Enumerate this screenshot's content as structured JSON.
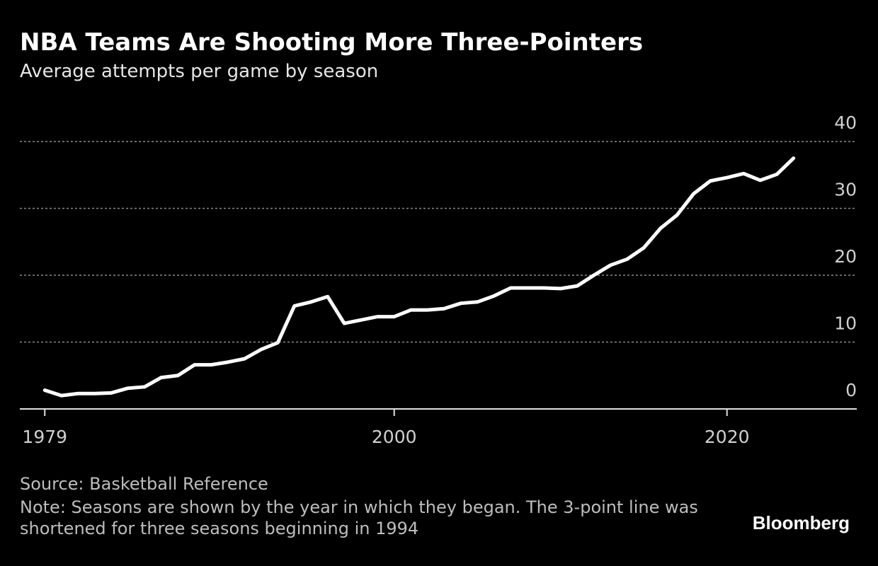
{
  "chart_data": {
    "type": "line",
    "title": "NBA Teams Are Shooting More Three-Pointers",
    "subtitle": "Average attempts per game by season",
    "x": [
      1979,
      1980,
      1981,
      1982,
      1983,
      1984,
      1985,
      1986,
      1987,
      1988,
      1989,
      1990,
      1991,
      1992,
      1993,
      1994,
      1995,
      1996,
      1997,
      1998,
      1999,
      2000,
      2001,
      2002,
      2003,
      2004,
      2005,
      2006,
      2007,
      2008,
      2009,
      2010,
      2011,
      2012,
      2013,
      2014,
      2015,
      2016,
      2017,
      2018,
      2019,
      2020,
      2021,
      2022,
      2023,
      2024
    ],
    "values": [
      2.8,
      2.0,
      2.3,
      2.3,
      2.4,
      3.1,
      3.3,
      4.7,
      5.0,
      6.6,
      6.6,
      7.0,
      7.5,
      8.9,
      9.9,
      15.4,
      16.0,
      16.8,
      12.8,
      13.3,
      13.8,
      13.8,
      14.8,
      14.8,
      15.0,
      15.8,
      16.0,
      16.9,
      18.1,
      18.1,
      18.1,
      18.0,
      18.4,
      20.0,
      21.5,
      22.4,
      24.1,
      27.0,
      29.0,
      32.2,
      34.1,
      34.6,
      35.2,
      34.2,
      35.1,
      37.5
    ],
    "color": "#ffffff",
    "xlim": [
      1977.5,
      2027.8
    ],
    "xticks": [
      1979,
      2000,
      2020
    ],
    "ylim": [
      0,
      40
    ],
    "yticks": [
      0,
      10,
      20,
      30,
      40
    ],
    "grid": true,
    "source": "Source: Basketball Reference",
    "note": "Note: Seasons are shown by the year in which they began. The 3-point line was shortened for three seasons beginning in 1994",
    "brand": "Bloomberg"
  }
}
